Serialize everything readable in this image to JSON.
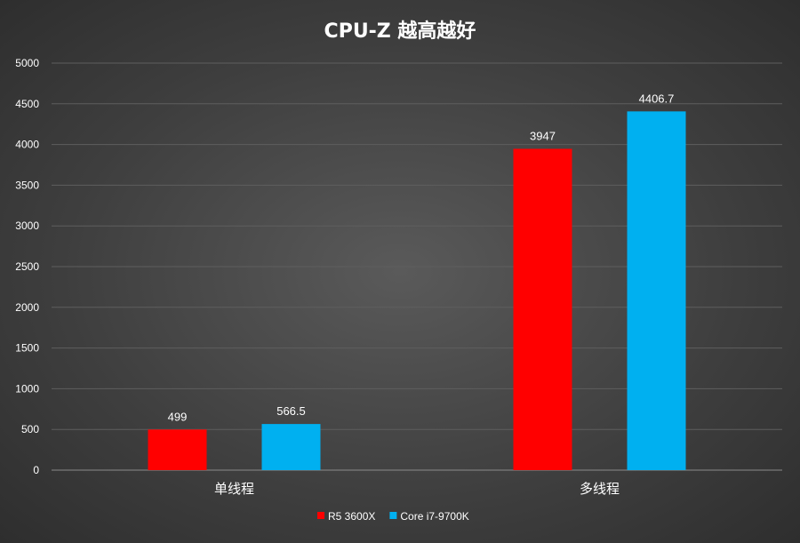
{
  "chart_data": {
    "type": "bar",
    "title": "CPU-Z  越高越好",
    "categories": [
      "单线程",
      "多线程"
    ],
    "series": [
      {
        "name": "R5 3600X",
        "color": "#ff0000",
        "values": [
          499,
          3947
        ],
        "labels": [
          "499",
          "3947"
        ]
      },
      {
        "name": "Core i7-9700K",
        "color": "#00b0f0",
        "values": [
          566.5,
          4406.7
        ],
        "labels": [
          "566.5",
          "4406.7"
        ]
      }
    ],
    "ylim": [
      0,
      5000
    ],
    "yticks": [
      "0",
      "500",
      "1000",
      "1500",
      "2000",
      "2500",
      "3000",
      "3500",
      "4000",
      "4500",
      "5000"
    ],
    "grid": true,
    "legend_position": "bottom"
  }
}
